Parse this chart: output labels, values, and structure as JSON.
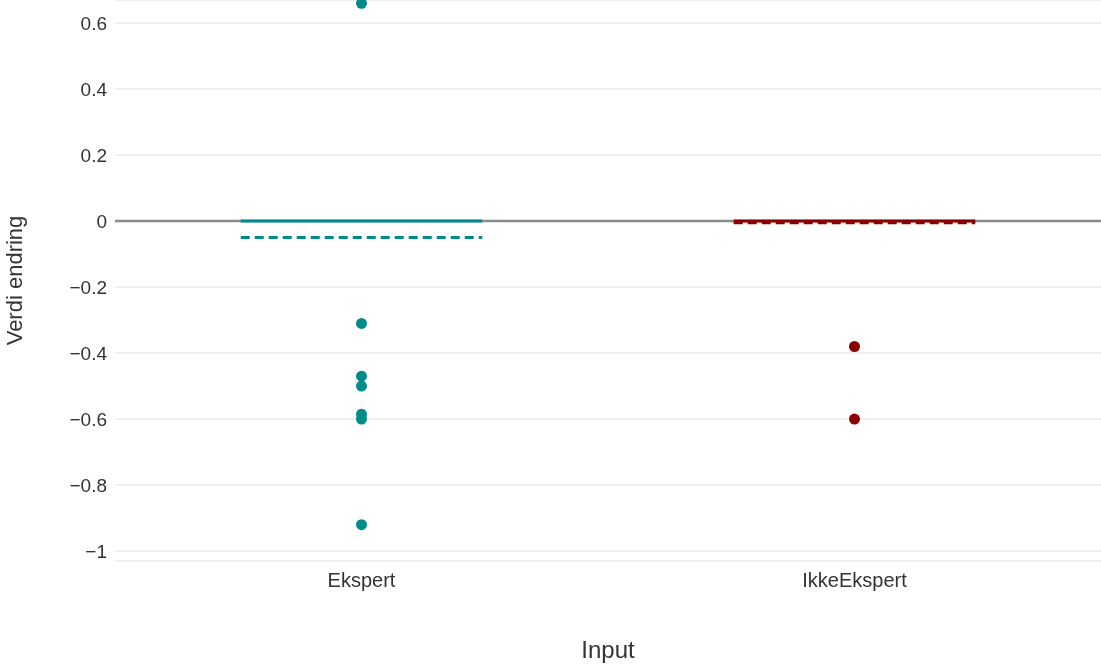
{
  "chart_data": {
    "type": "box",
    "xlabel": "Input",
    "ylabel": "Verdi endring",
    "categories": [
      "Ekspert",
      "IkkeEkspert"
    ],
    "colors": [
      "#008b8b",
      "#8b0000"
    ],
    "boxes": [
      {
        "low": 0,
        "q1": 0,
        "median": 0,
        "q3": 0,
        "high": 0,
        "mean": -0.05,
        "outliers": [
          0.66,
          -0.31,
          -0.47,
          -0.5,
          -0.585,
          -0.6,
          -0.92
        ]
      },
      {
        "low": 0,
        "q1": 0,
        "median": 0,
        "q3": 0,
        "high": 0,
        "mean": -0.005,
        "outliers": [
          -0.38,
          -0.6
        ]
      }
    ],
    "ylim": [
      -1.03,
      0.67
    ],
    "yticks": [
      {
        "value": -1,
        "label": "−1"
      },
      {
        "value": -0.8,
        "label": "−0.8"
      },
      {
        "value": -0.6,
        "label": "−0.6"
      },
      {
        "value": -0.4,
        "label": "−0.4"
      },
      {
        "value": -0.2,
        "label": "−0.2"
      },
      0,
      0.2,
      0.4,
      0.6
    ],
    "grid": "y"
  }
}
